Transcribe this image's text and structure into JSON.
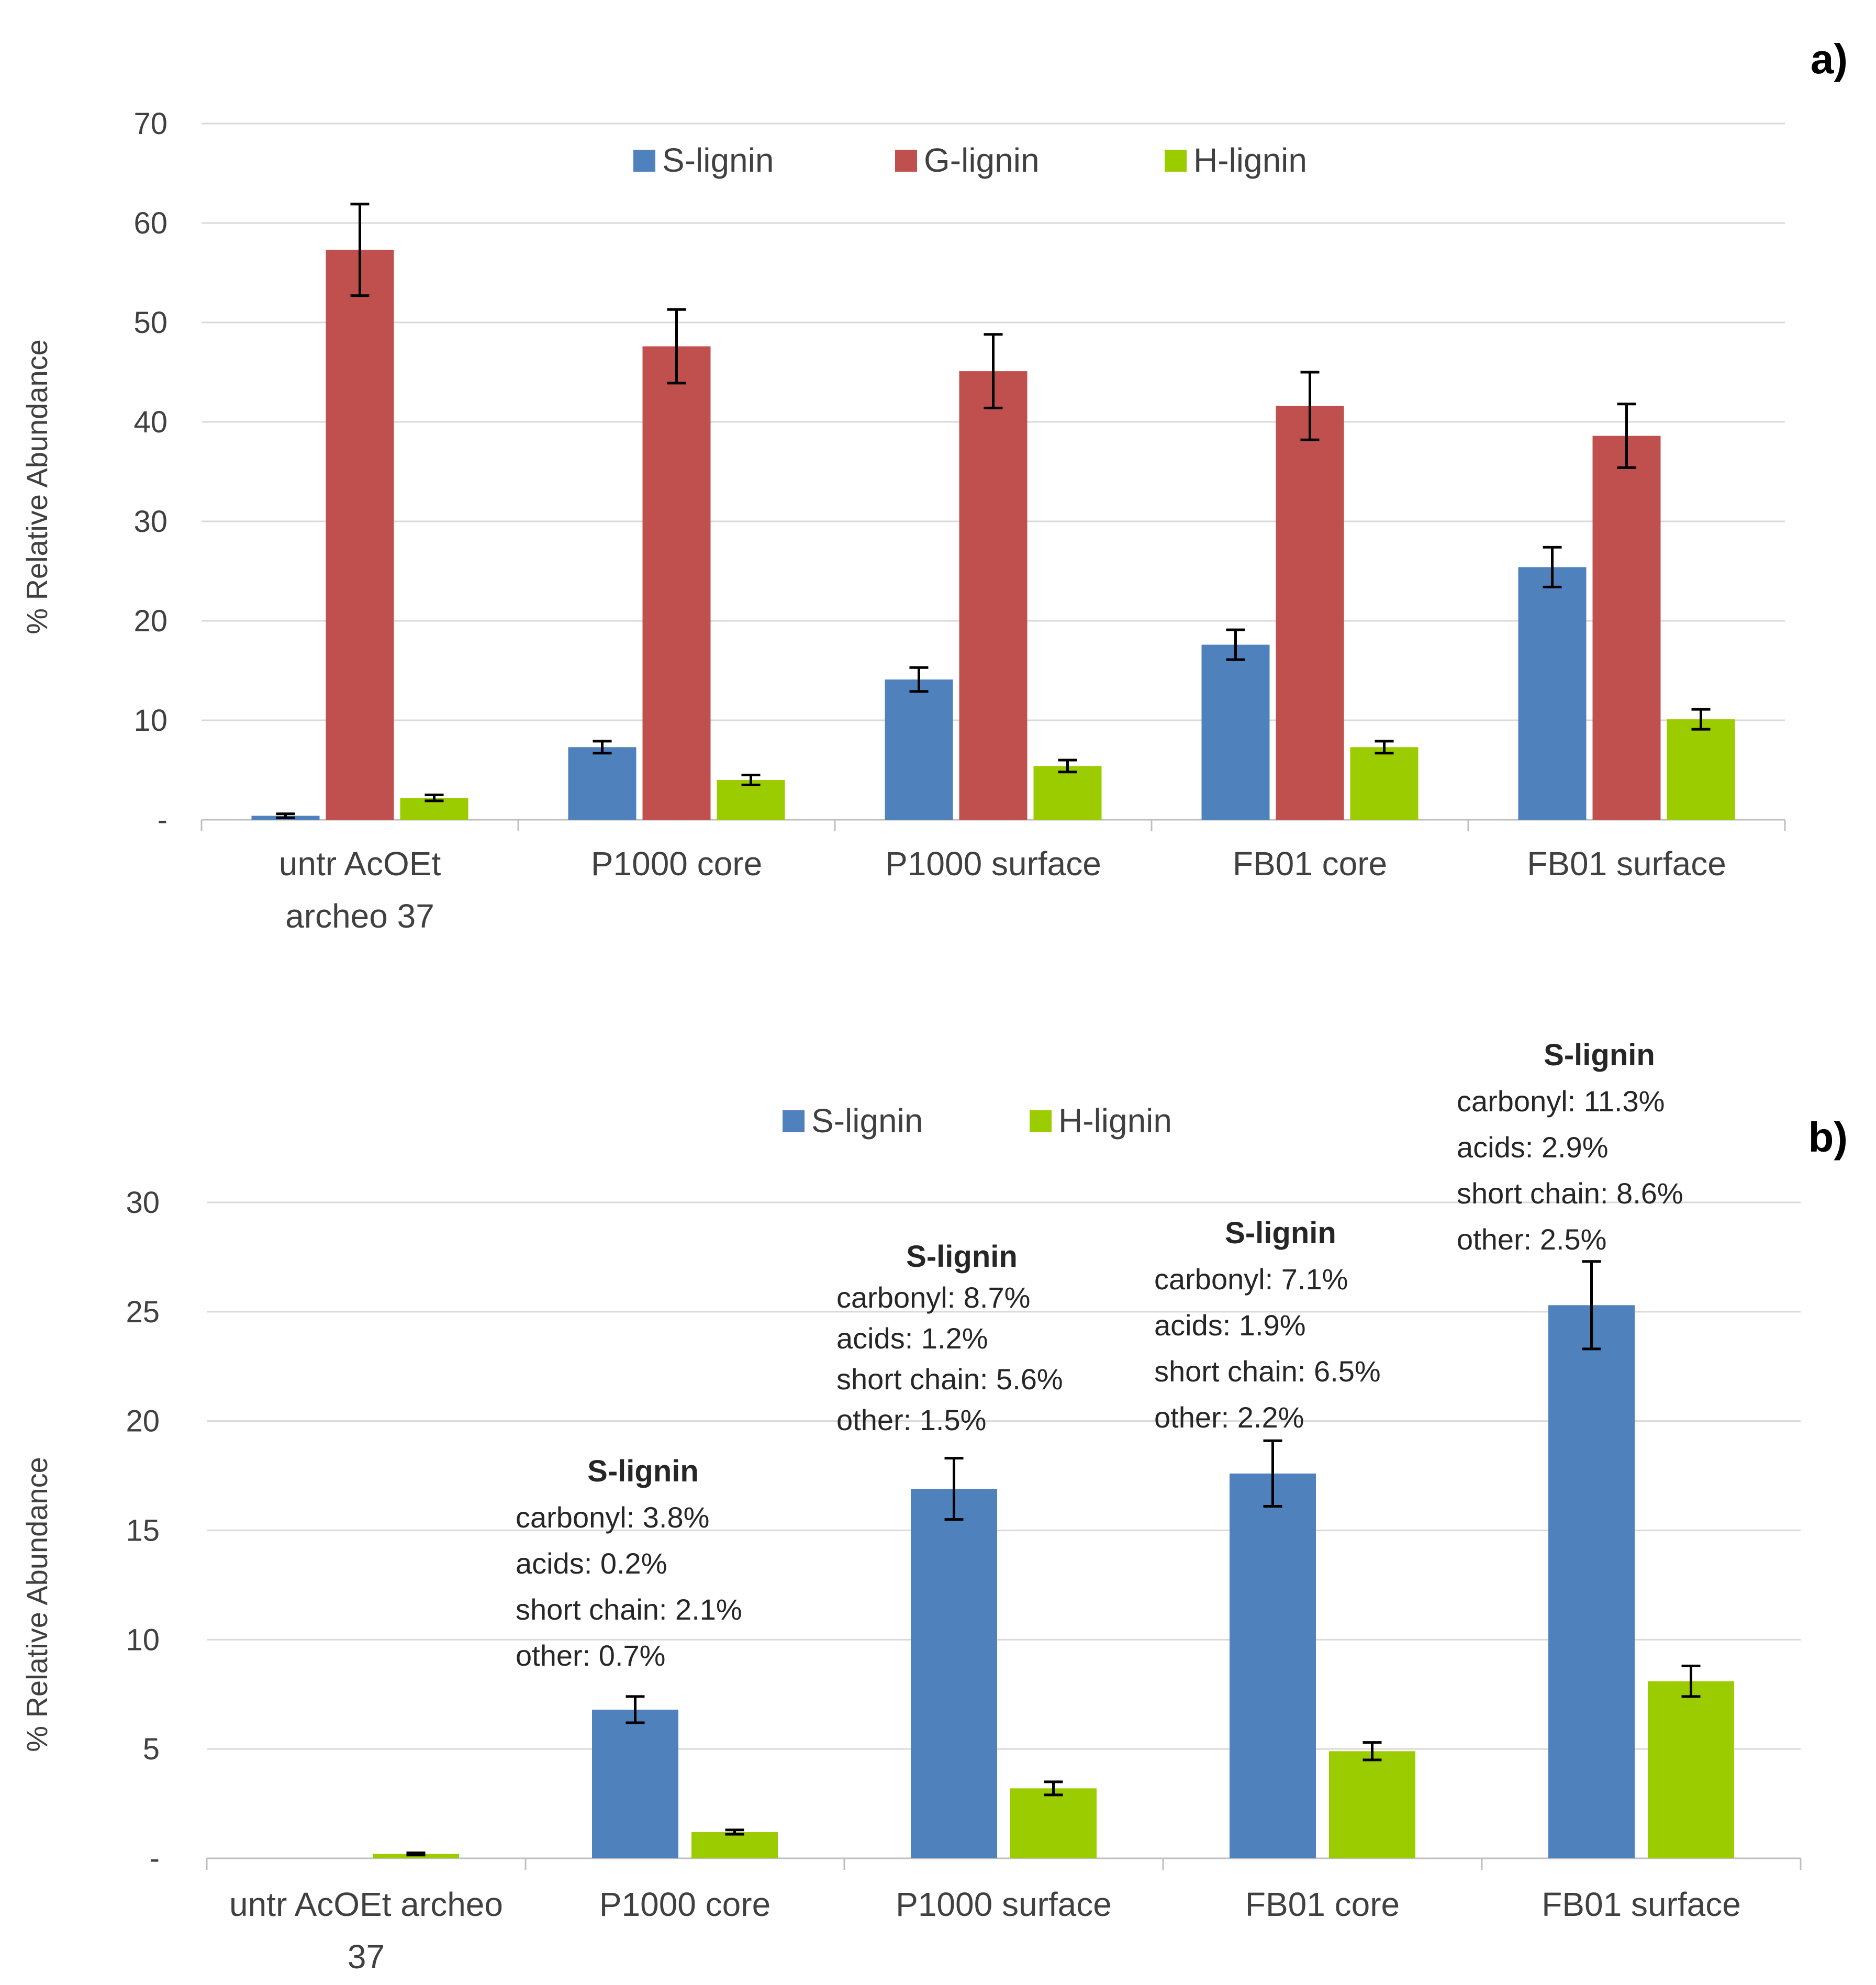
{
  "chart_data": [
    {
      "panel": "a)",
      "type": "bar",
      "ylabel": "% Relative Abundance",
      "ylim": [
        0,
        70
      ],
      "yticks": [
        "-",
        "10",
        "20",
        "30",
        "40",
        "50",
        "60",
        "70"
      ],
      "grid": true,
      "legend_position": "top-center",
      "categories": [
        [
          "untr  AcOEt",
          "archeo 37"
        ],
        [
          "P1000 core"
        ],
        [
          "P1000 surface"
        ],
        [
          "FB01 core"
        ],
        [
          "FB01 surface"
        ]
      ],
      "series": [
        {
          "name": "S-lignin",
          "color": "#4f81bd",
          "values": [
            0.4,
            7.3,
            14.1,
            17.6,
            25.4
          ],
          "errors": [
            0.2,
            0.6,
            1.2,
            1.5,
            2.0
          ]
        },
        {
          "name": "G-lignin",
          "color": "#c0504d",
          "values": [
            57.3,
            47.6,
            45.1,
            41.6,
            38.6
          ],
          "errors": [
            4.6,
            3.7,
            3.7,
            3.4,
            3.2
          ]
        },
        {
          "name": "H-lignin",
          "color": "#9bcc00",
          "values": [
            2.2,
            4.0,
            5.4,
            7.3,
            10.1
          ],
          "errors": [
            0.3,
            0.5,
            0.6,
            0.6,
            1.0
          ]
        }
      ]
    },
    {
      "panel": "b)",
      "type": "bar",
      "ylabel": "% Relative Abundance",
      "ylim": [
        0,
        30
      ],
      "yticks": [
        "-",
        "5",
        "10",
        "15",
        "20",
        "25",
        "30"
      ],
      "grid": true,
      "legend_position": "top-center",
      "categories": [
        [
          "untr AcOEt archeo",
          "37"
        ],
        [
          "P1000 core"
        ],
        [
          "P1000 surface"
        ],
        [
          "FB01 core"
        ],
        [
          "FB01 surface"
        ]
      ],
      "series": [
        {
          "name": "S-lignin",
          "color": "#4f81bd",
          "values": [
            0,
            6.8,
            16.9,
            17.6,
            25.3
          ],
          "errors": [
            0,
            0.6,
            1.4,
            1.5,
            2.0
          ]
        },
        {
          "name": "H-lignin",
          "color": "#9bcc00",
          "values": [
            0.2,
            1.2,
            3.2,
            4.9,
            8.1
          ],
          "errors": [
            0.05,
            0.1,
            0.3,
            0.4,
            0.7
          ]
        }
      ],
      "annotations": [
        {
          "category": 1,
          "title": "S-lignin",
          "lines": [
            "carbonyl: 3.8%",
            "acids: 0.2%",
            "short chain: 2.1%",
            "other: 0.7%"
          ]
        },
        {
          "category": 2,
          "title": "S-lignin",
          "lines": [
            "carbonyl: 8.7%",
            "acids: 1.2%",
            "short chain: 5.6%",
            "other:  1.5%"
          ]
        },
        {
          "category": 3,
          "title": "S-lignin",
          "lines": [
            "carbonyl: 7.1%",
            "acids: 1.9%",
            "short chain: 6.5%",
            "other: 2.2%"
          ]
        },
        {
          "category": 4,
          "title": "S-lignin",
          "lines": [
            "carbonyl: 11.3%",
            "acids: 2.9%",
            "short chain: 8.6%",
            "other: 2.5%"
          ]
        }
      ]
    }
  ]
}
